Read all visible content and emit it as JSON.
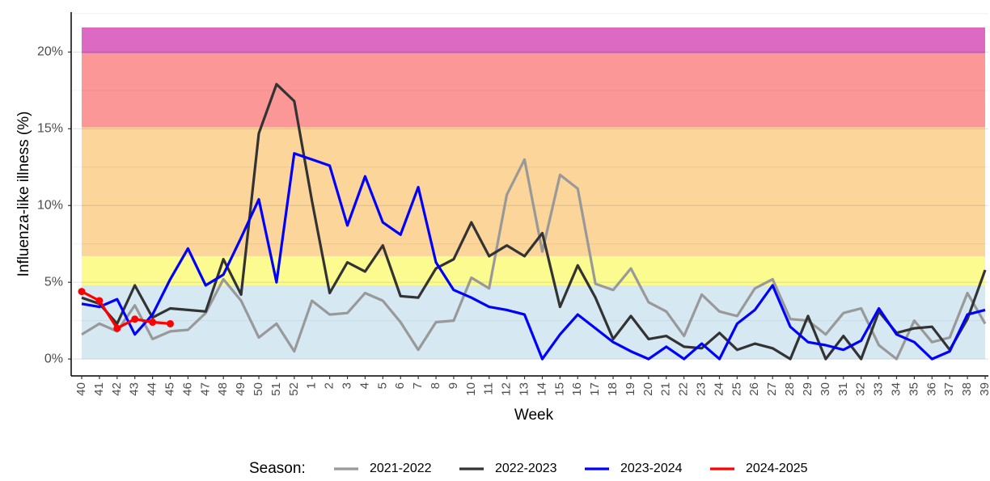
{
  "chart_data": {
    "type": "line",
    "y_label": "Influenza-like illness (%)",
    "x_label": "Week",
    "legend_title": "Season:",
    "legend_position": "bottom",
    "categories": [
      "40",
      "41",
      "42",
      "43",
      "44",
      "45",
      "46",
      "47",
      "48",
      "49",
      "50",
      "51",
      "52",
      "1",
      "2",
      "3",
      "4",
      "5",
      "6",
      "7",
      "8",
      "9",
      "10",
      "11",
      "12",
      "13",
      "14",
      "15",
      "16",
      "17",
      "18",
      "19",
      "20",
      "21",
      "22",
      "23",
      "24",
      "25",
      "26",
      "27",
      "28",
      "29",
      "30",
      "31",
      "32",
      "33",
      "34",
      "35",
      "36",
      "37",
      "38",
      "39"
    ],
    "ylim": [
      -1.1,
      22.6
    ],
    "yticks": [
      {
        "value": 0,
        "label": "0%"
      },
      {
        "value": 5,
        "label": "5%"
      },
      {
        "value": 10,
        "label": "10%"
      },
      {
        "value": 15,
        "label": "15%"
      },
      {
        "value": 20,
        "label": "20%"
      }
    ],
    "minor_yticks": [
      2.5,
      7.5,
      12.5,
      17.5,
      22.5
    ],
    "grid": true,
    "bands": [
      {
        "from": 0,
        "to": 4.8,
        "color": "#d6e9f3"
      },
      {
        "from": 4.8,
        "to": 6.7,
        "color": "#fbfb8f"
      },
      {
        "from": 6.7,
        "to": 15.1,
        "color": "#fbd59a"
      },
      {
        "from": 15.1,
        "to": 19.9,
        "color": "#fb9797"
      },
      {
        "from": 19.9,
        "to": 21.6,
        "color": "#dc6ac2"
      }
    ],
    "series": [
      {
        "name": "2021-2022",
        "color": "#999999",
        "markers": false,
        "values": [
          1.6,
          2.3,
          1.8,
          3.5,
          1.3,
          1.8,
          1.9,
          3.0,
          5.2,
          3.8,
          1.4,
          2.3,
          0.5,
          3.8,
          2.9,
          3.0,
          4.3,
          3.8,
          2.4,
          0.6,
          2.4,
          2.5,
          5.3,
          4.6,
          10.7,
          13.0,
          7.0,
          12.0,
          11.1,
          4.9,
          4.5,
          5.9,
          3.7,
          3.1,
          1.5,
          4.2,
          3.1,
          2.8,
          4.6,
          5.2,
          2.6,
          2.5,
          1.6,
          3.0,
          3.3,
          0.9,
          0.0,
          2.5,
          1.1,
          1.4,
          4.3,
          2.3
        ]
      },
      {
        "name": "2022-2023",
        "color": "#333333",
        "markers": false,
        "values": [
          4.0,
          3.6,
          2.3,
          4.8,
          2.7,
          3.3,
          3.2,
          3.1,
          6.5,
          4.2,
          14.7,
          17.9,
          16.8,
          10.3,
          4.3,
          6.3,
          5.7,
          7.4,
          4.1,
          4.0,
          5.9,
          6.5,
          8.9,
          6.7,
          7.4,
          6.7,
          8.2,
          3.4,
          6.1,
          4.0,
          1.3,
          2.8,
          1.3,
          1.5,
          0.8,
          0.7,
          1.7,
          0.6,
          1.0,
          0.7,
          0.0,
          2.8,
          0.0,
          1.5,
          0.0,
          3.1,
          1.7,
          2.0,
          2.1,
          0.6,
          2.6,
          5.8
        ]
      },
      {
        "name": "2023-2024",
        "color": "#0000ff",
        "markers": false,
        "values": [
          3.6,
          3.4,
          3.9,
          1.6,
          2.9,
          5.2,
          7.2,
          4.8,
          5.5,
          7.9,
          10.4,
          5.0,
          13.4,
          13.0,
          12.6,
          8.7,
          11.9,
          8.9,
          8.1,
          11.2,
          6.3,
          4.5,
          4.0,
          3.4,
          3.2,
          2.9,
          0.0,
          1.6,
          2.9,
          2.0,
          1.1,
          0.5,
          0.0,
          0.8,
          0.0,
          1.0,
          0.0,
          2.3,
          3.2,
          4.8,
          2.1,
          1.1,
          0.9,
          0.6,
          1.2,
          3.3,
          1.6,
          1.1,
          0.0,
          0.5,
          2.9,
          3.2
        ]
      },
      {
        "name": "2024-2025",
        "color": "#ff0000",
        "markers": true,
        "values": [
          4.4,
          3.8,
          2.0,
          2.6,
          2.4,
          2.3,
          null,
          null,
          null,
          null,
          null,
          null,
          null,
          null,
          null,
          null,
          null,
          null,
          null,
          null,
          null,
          null,
          null,
          null,
          null,
          null,
          null,
          null,
          null,
          null,
          null,
          null,
          null,
          null,
          null,
          null,
          null,
          null,
          null,
          null,
          null,
          null,
          null,
          null,
          null,
          null,
          null,
          null,
          null,
          null,
          null,
          null
        ]
      }
    ]
  }
}
